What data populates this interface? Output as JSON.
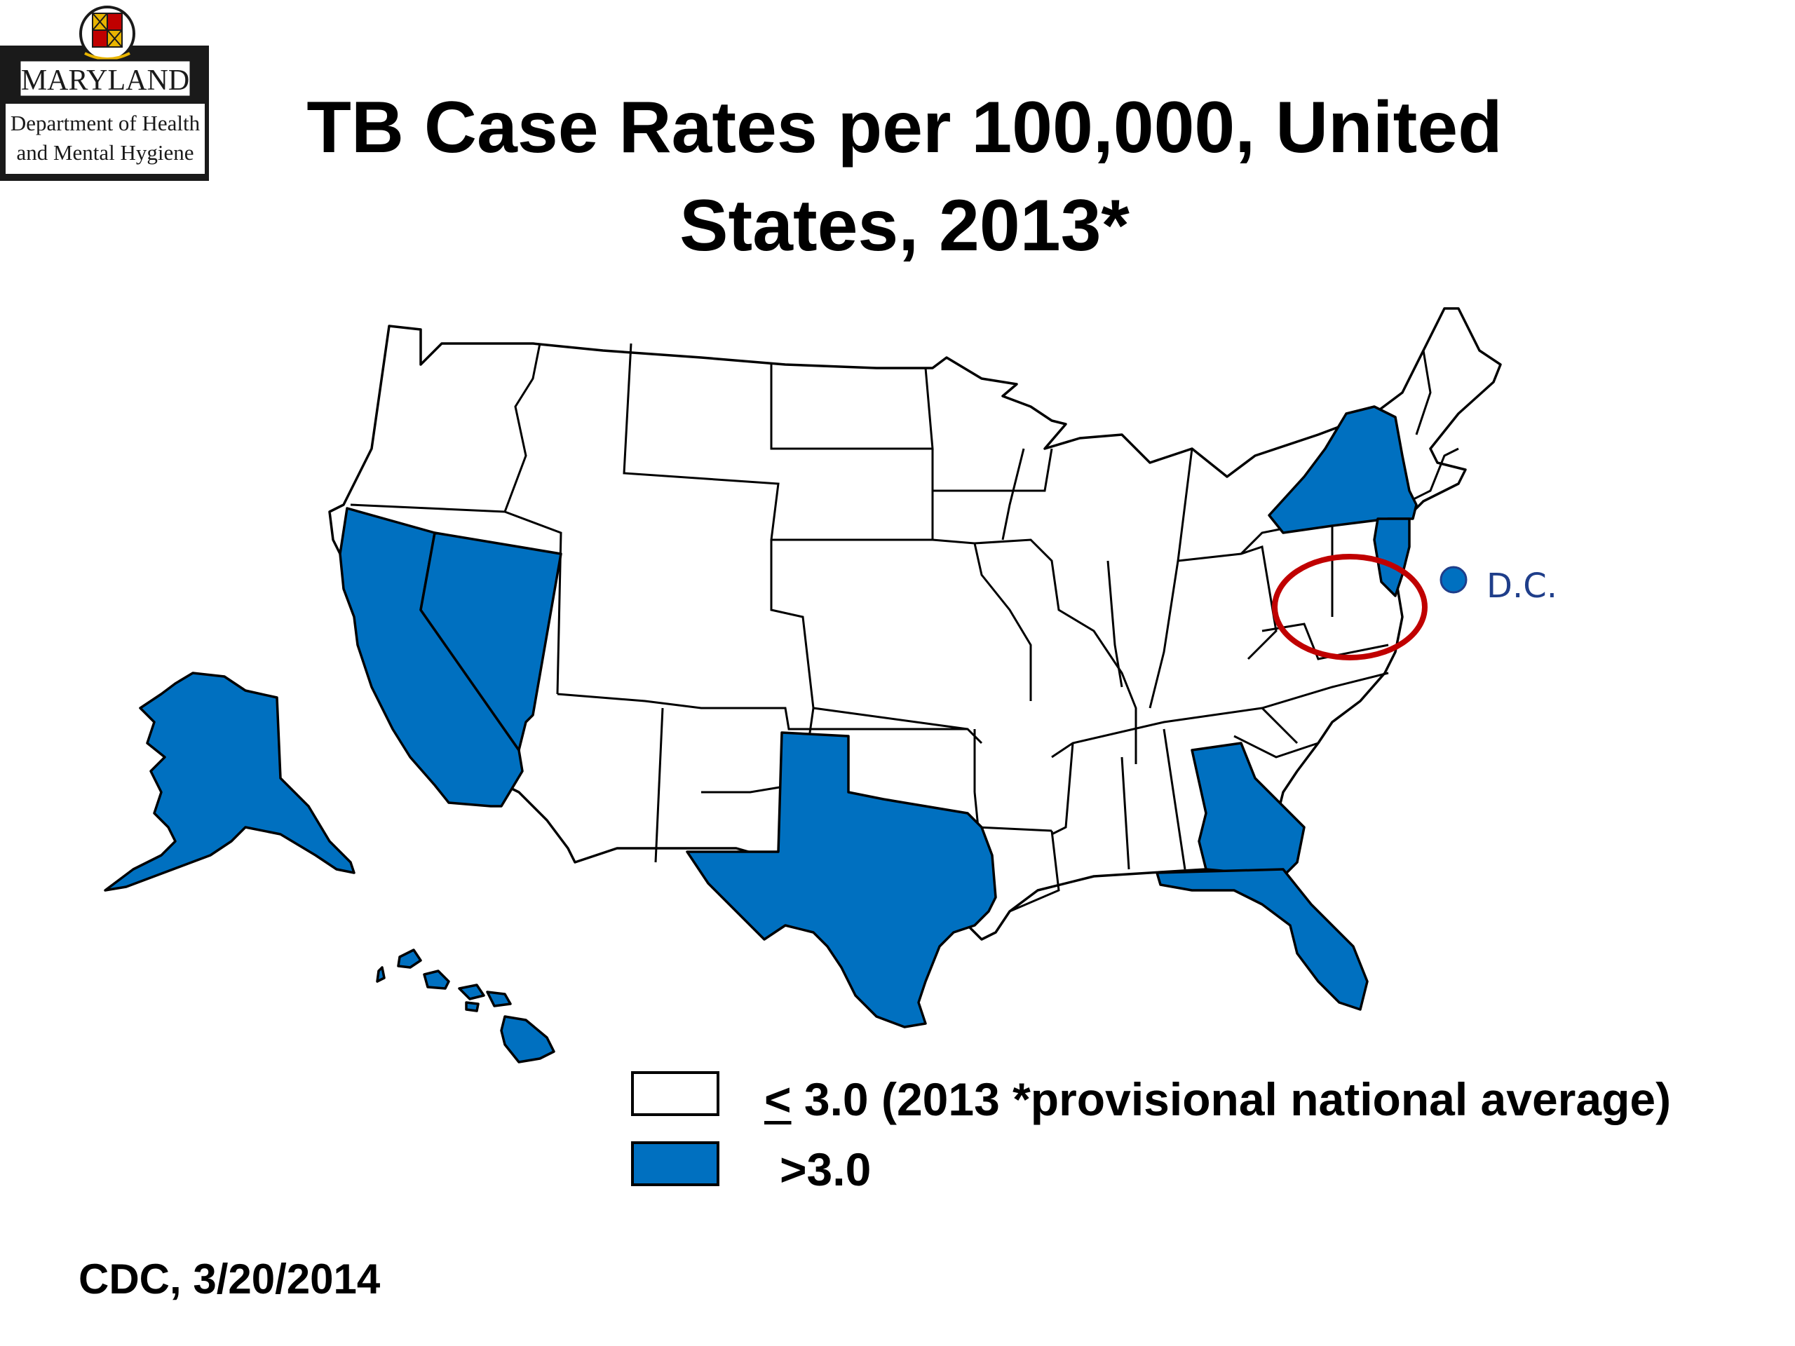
{
  "logo": {
    "state_name": "MARYLAND",
    "dept_line1": "Department of Health",
    "dept_line2": "and Mental Hygiene"
  },
  "title": {
    "line1": "TB Case Rates per 100,000, United",
    "line2": "States, 2013*"
  },
  "map": {
    "colors": {
      "low": "#ffffff",
      "high": "#0070c0",
      "highlight_ring": "#c00000",
      "dc_marker": "#0070c0",
      "dc_label": "#1f3e8a"
    },
    "states_above_average": [
      "Alaska",
      "California",
      "Nevada",
      "Texas",
      "Hawaii",
      "Georgia",
      "Florida",
      "New York",
      "New Jersey"
    ],
    "highlighted_region": "Maryland",
    "dc_label": "D.C.",
    "dc_category": "high"
  },
  "legend": {
    "items": [
      {
        "symbol": "<",
        "label": " 3.0 (2013 *provisional national average)",
        "color": "#ffffff"
      },
      {
        "symbol": "",
        "label": ">3.0",
        "color": "#0070c0"
      }
    ]
  },
  "source": "CDC, 3/20/2014"
}
